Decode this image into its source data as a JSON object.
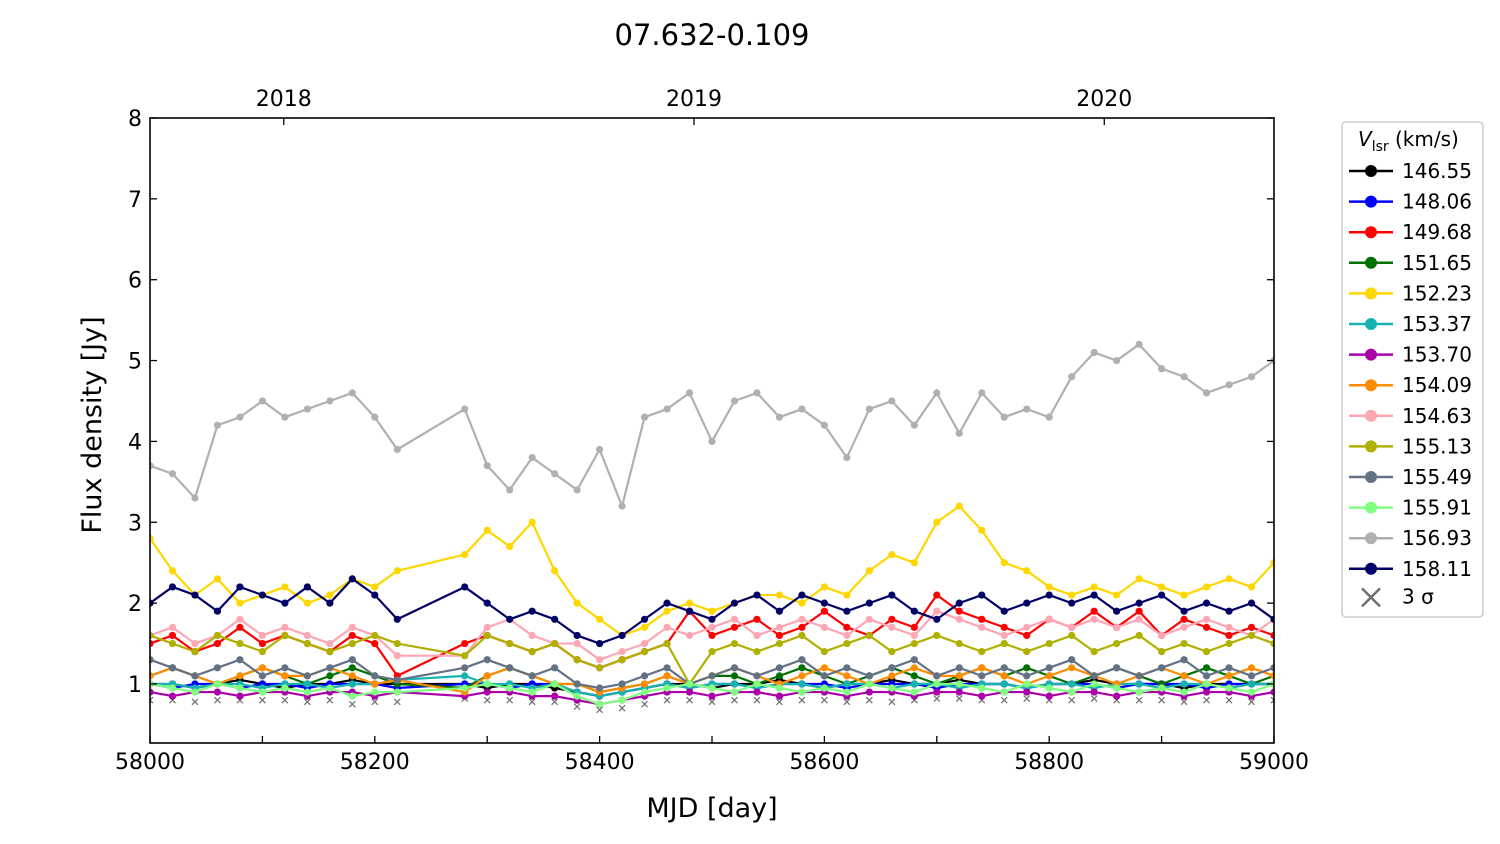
{
  "chart_data": {
    "type": "line",
    "title": "07.632-0.109",
    "xlabel": "MJD [day]",
    "ylabel": "Flux density [Jy]",
    "xlim": [
      58000,
      59000
    ],
    "ylim": [
      0.27,
      8
    ],
    "xticks": [
      58000,
      58200,
      58400,
      58600,
      58800,
      59000
    ],
    "yticks": [
      1,
      2,
      3,
      4,
      5,
      6,
      7,
      8
    ],
    "top_axis": {
      "ticks": [
        {
          "label": "2018",
          "mjd": 58119
        },
        {
          "label": "2019",
          "mjd": 58484
        },
        {
          "label": "2020",
          "mjd": 58849
        }
      ]
    },
    "legend": {
      "title_main": "V",
      "title_sub": "lsr",
      "title_unit": " (km/s)",
      "placement": "right-outside",
      "sigma_label": "3 σ"
    },
    "x": [
      58000,
      58020,
      58040,
      58060,
      58080,
      58100,
      58120,
      58140,
      58160,
      58180,
      58200,
      58220,
      58280,
      58300,
      58320,
      58340,
      58360,
      58380,
      58400,
      58420,
      58440,
      58460,
      58480,
      58500,
      58520,
      58540,
      58560,
      58580,
      58600,
      58620,
      58640,
      58660,
      58680,
      58700,
      58720,
      58740,
      58760,
      58780,
      58800,
      58820,
      58840,
      58860,
      58880,
      58900,
      58920,
      58940,
      58960,
      58980,
      59000
    ],
    "series": [
      {
        "name": "146.55",
        "color": "#000000",
        "values": [
          1.0,
          1.0,
          0.95,
          1.0,
          1.05,
          1.0,
          0.95,
          1.0,
          1.0,
          1.05,
          1.0,
          1.0,
          1.0,
          0.95,
          1.0,
          1.0,
          0.95,
          0.9,
          0.85,
          0.9,
          0.95,
          1.0,
          1.0,
          0.95,
          1.0,
          1.0,
          1.05,
          1.0,
          0.95,
          1.0,
          1.0,
          1.05,
          1.0,
          1.0,
          1.05,
          1.0,
          1.0,
          0.95,
          1.0,
          1.0,
          1.05,
          1.0,
          1.0,
          1.0,
          0.95,
          1.0,
          1.0,
          1.0,
          1.0
        ]
      },
      {
        "name": "148.06",
        "color": "#0000ff",
        "values": [
          1.0,
          0.95,
          1.0,
          1.0,
          0.95,
          1.0,
          1.0,
          0.95,
          1.0,
          1.0,
          1.0,
          0.95,
          1.0,
          1.0,
          0.95,
          1.0,
          1.0,
          0.9,
          0.85,
          0.9,
          0.95,
          1.0,
          0.95,
          1.0,
          1.0,
          0.95,
          1.0,
          1.0,
          1.0,
          0.95,
          1.0,
          1.0,
          1.0,
          0.95,
          1.0,
          1.0,
          1.0,
          0.95,
          1.0,
          1.0,
          1.0,
          0.95,
          1.0,
          1.0,
          1.0,
          0.95,
          1.0,
          1.0,
          1.0
        ]
      },
      {
        "name": "149.68",
        "color": "#ff0000",
        "values": [
          1.5,
          1.6,
          1.4,
          1.5,
          1.7,
          1.5,
          1.6,
          1.5,
          1.4,
          1.6,
          1.5,
          1.1,
          1.5,
          1.6,
          1.5,
          1.4,
          1.5,
          1.3,
          1.2,
          1.3,
          1.4,
          1.5,
          1.9,
          1.6,
          1.7,
          1.8,
          1.6,
          1.7,
          1.9,
          1.7,
          1.6,
          1.8,
          1.7,
          2.1,
          1.9,
          1.8,
          1.7,
          1.6,
          1.8,
          1.7,
          1.9,
          1.7,
          1.9,
          1.6,
          1.8,
          1.7,
          1.6,
          1.7,
          1.6
        ]
      },
      {
        "name": "151.65",
        "color": "#007000",
        "values": [
          1.1,
          1.2,
          1.1,
          1.0,
          1.1,
          1.2,
          1.1,
          1.0,
          1.1,
          1.2,
          1.1,
          1.0,
          0.95,
          1.1,
          1.2,
          1.1,
          1.0,
          1.0,
          0.9,
          0.95,
          1.0,
          1.1,
          1.0,
          1.1,
          1.1,
          1.0,
          1.1,
          1.2,
          1.1,
          1.0,
          1.1,
          1.2,
          1.1,
          1.0,
          1.1,
          1.2,
          1.1,
          1.2,
          1.1,
          1.0,
          1.1,
          1.2,
          1.1,
          1.0,
          1.1,
          1.2,
          1.1,
          1.0,
          1.1
        ]
      },
      {
        "name": "152.23",
        "color": "#ffd700",
        "values": [
          2.8,
          2.4,
          2.1,
          2.3,
          2.0,
          2.1,
          2.2,
          2.0,
          2.1,
          2.3,
          2.2,
          2.4,
          2.6,
          2.9,
          2.7,
          3.0,
          2.4,
          2.0,
          1.8,
          1.6,
          1.7,
          1.9,
          2.0,
          1.9,
          2.0,
          2.1,
          2.1,
          2.0,
          2.2,
          2.1,
          2.4,
          2.6,
          2.5,
          3.0,
          3.2,
          2.9,
          2.5,
          2.4,
          2.2,
          2.1,
          2.2,
          2.1,
          2.3,
          2.2,
          2.1,
          2.2,
          2.3,
          2.2,
          2.5
        ]
      },
      {
        "name": "153.37",
        "color": "#17b3b0",
        "values": [
          1.0,
          1.0,
          0.95,
          1.0,
          1.0,
          0.95,
          1.0,
          1.0,
          0.95,
          1.0,
          1.0,
          1.05,
          1.1,
          1.0,
          1.0,
          0.95,
          1.0,
          0.9,
          0.85,
          0.9,
          0.95,
          1.0,
          0.95,
          1.0,
          1.0,
          0.95,
          1.0,
          1.0,
          0.95,
          1.0,
          1.0,
          0.95,
          1.0,
          1.0,
          0.95,
          1.0,
          1.0,
          0.95,
          1.0,
          1.0,
          0.95,
          1.0,
          1.0,
          0.95,
          1.0,
          1.0,
          0.95,
          1.0,
          1.0
        ]
      },
      {
        "name": "153.70",
        "color": "#aa00aa",
        "values": [
          0.9,
          0.85,
          0.9,
          0.9,
          0.85,
          0.9,
          0.9,
          0.85,
          0.9,
          0.9,
          0.85,
          0.9,
          0.85,
          0.9,
          0.9,
          0.85,
          0.85,
          0.8,
          0.75,
          0.8,
          0.85,
          0.9,
          0.9,
          0.85,
          0.9,
          0.9,
          0.85,
          0.9,
          0.9,
          0.85,
          0.9,
          0.9,
          0.85,
          0.9,
          0.9,
          0.85,
          0.9,
          0.9,
          0.85,
          0.9,
          0.9,
          0.85,
          0.9,
          0.9,
          0.85,
          0.9,
          0.9,
          0.85,
          0.9
        ]
      },
      {
        "name": "154.09",
        "color": "#ff8c00",
        "values": [
          1.1,
          1.2,
          1.1,
          1.0,
          1.1,
          1.2,
          1.1,
          1.1,
          1.2,
          1.1,
          1.0,
          1.05,
          0.9,
          1.1,
          1.2,
          1.1,
          1.0,
          1.0,
          0.9,
          0.95,
          1.0,
          1.1,
          1.0,
          1.1,
          1.2,
          1.1,
          1.0,
          1.1,
          1.2,
          1.1,
          1.0,
          1.1,
          1.2,
          1.1,
          1.1,
          1.2,
          1.1,
          1.0,
          1.1,
          1.2,
          1.1,
          1.0,
          1.1,
          1.2,
          1.1,
          1.0,
          1.1,
          1.2,
          1.1
        ]
      },
      {
        "name": "154.63",
        "color": "#ffa6b4",
        "values": [
          1.6,
          1.7,
          1.5,
          1.6,
          1.8,
          1.6,
          1.7,
          1.6,
          1.5,
          1.7,
          1.6,
          1.35,
          1.35,
          1.7,
          1.8,
          1.6,
          1.5,
          1.5,
          1.3,
          1.4,
          1.5,
          1.7,
          1.6,
          1.7,
          1.8,
          1.6,
          1.7,
          1.8,
          1.7,
          1.6,
          1.8,
          1.7,
          1.6,
          1.9,
          1.8,
          1.7,
          1.6,
          1.7,
          1.8,
          1.7,
          1.8,
          1.7,
          1.8,
          1.6,
          1.7,
          1.8,
          1.7,
          1.6,
          1.8
        ]
      },
      {
        "name": "155.13",
        "color": "#b0b000",
        "values": [
          1.6,
          1.5,
          1.4,
          1.6,
          1.5,
          1.4,
          1.6,
          1.5,
          1.4,
          1.5,
          1.6,
          1.5,
          1.35,
          1.6,
          1.5,
          1.4,
          1.5,
          1.3,
          1.2,
          1.3,
          1.4,
          1.5,
          1.0,
          1.4,
          1.5,
          1.4,
          1.5,
          1.6,
          1.4,
          1.5,
          1.6,
          1.4,
          1.5,
          1.6,
          1.5,
          1.4,
          1.5,
          1.4,
          1.5,
          1.6,
          1.4,
          1.5,
          1.6,
          1.4,
          1.5,
          1.4,
          1.5,
          1.6,
          1.5
        ]
      },
      {
        "name": "155.49",
        "color": "#627284",
        "values": [
          1.3,
          1.2,
          1.1,
          1.2,
          1.3,
          1.1,
          1.2,
          1.1,
          1.2,
          1.3,
          1.1,
          1.05,
          1.2,
          1.3,
          1.2,
          1.1,
          1.2,
          1.0,
          0.95,
          1.0,
          1.1,
          1.2,
          1.0,
          1.1,
          1.2,
          1.1,
          1.2,
          1.3,
          1.1,
          1.2,
          1.1,
          1.2,
          1.3,
          1.1,
          1.2,
          1.1,
          1.2,
          1.1,
          1.2,
          1.3,
          1.1,
          1.2,
          1.1,
          1.2,
          1.3,
          1.1,
          1.2,
          1.1,
          1.2
        ]
      },
      {
        "name": "155.91",
        "color": "#80ff80",
        "values": [
          1.0,
          0.95,
          0.9,
          1.0,
          0.95,
          0.9,
          0.95,
          0.9,
          0.95,
          0.85,
          0.9,
          0.9,
          0.95,
          1.0,
          0.95,
          0.9,
          1.0,
          0.85,
          0.75,
          0.8,
          0.9,
          0.95,
          1.0,
          0.95,
          0.9,
          1.0,
          0.95,
          0.9,
          0.95,
          0.9,
          1.0,
          0.95,
          0.9,
          1.0,
          1.0,
          0.95,
          0.9,
          1.0,
          0.95,
          0.9,
          1.0,
          0.95,
          0.9,
          0.95,
          0.9,
          1.0,
          0.95,
          0.9,
          1.0
        ]
      },
      {
        "name": "156.93",
        "color": "#b0b0b0",
        "values": [
          3.7,
          3.6,
          3.3,
          4.2,
          4.3,
          4.5,
          4.3,
          4.4,
          4.5,
          4.6,
          4.3,
          3.9,
          4.4,
          3.7,
          3.4,
          3.8,
          3.6,
          3.4,
          3.9,
          3.2,
          4.3,
          4.4,
          4.6,
          4.0,
          4.5,
          4.6,
          4.3,
          4.4,
          4.2,
          3.8,
          4.4,
          4.5,
          4.2,
          4.6,
          4.1,
          4.6,
          4.3,
          4.4,
          4.3,
          4.8,
          5.1,
          5.0,
          5.2,
          4.9,
          4.8,
          4.6,
          4.7,
          4.8,
          5.0
        ]
      },
      {
        "name": "158.11",
        "color": "#000066",
        "values": [
          2.0,
          2.2,
          2.1,
          1.9,
          2.2,
          2.1,
          2.0,
          2.2,
          2.0,
          2.3,
          2.1,
          1.8,
          2.2,
          2.0,
          1.8,
          1.9,
          1.8,
          1.6,
          1.5,
          1.6,
          1.8,
          2.0,
          1.9,
          1.8,
          2.0,
          2.1,
          1.9,
          2.1,
          2.0,
          1.9,
          2.0,
          2.1,
          1.9,
          1.8,
          2.0,
          2.1,
          1.9,
          2.0,
          2.1,
          2.0,
          2.1,
          1.9,
          2.0,
          2.1,
          1.9,
          2.0,
          1.9,
          2.0,
          1.8
        ]
      }
    ],
    "sigma3": {
      "color": "#6e6e6e",
      "values": [
        0.8,
        0.8,
        0.78,
        0.8,
        0.8,
        0.8,
        0.8,
        0.78,
        0.8,
        0.75,
        0.78,
        0.78,
        0.82,
        0.8,
        0.8,
        0.78,
        0.78,
        0.72,
        0.68,
        0.7,
        0.75,
        0.8,
        0.8,
        0.78,
        0.8,
        0.8,
        0.78,
        0.8,
        0.8,
        0.78,
        0.8,
        0.78,
        0.8,
        0.82,
        0.82,
        0.8,
        0.8,
        0.82,
        0.8,
        0.8,
        0.82,
        0.8,
        0.8,
        0.8,
        0.78,
        0.8,
        0.8,
        0.78,
        0.8
      ]
    }
  }
}
